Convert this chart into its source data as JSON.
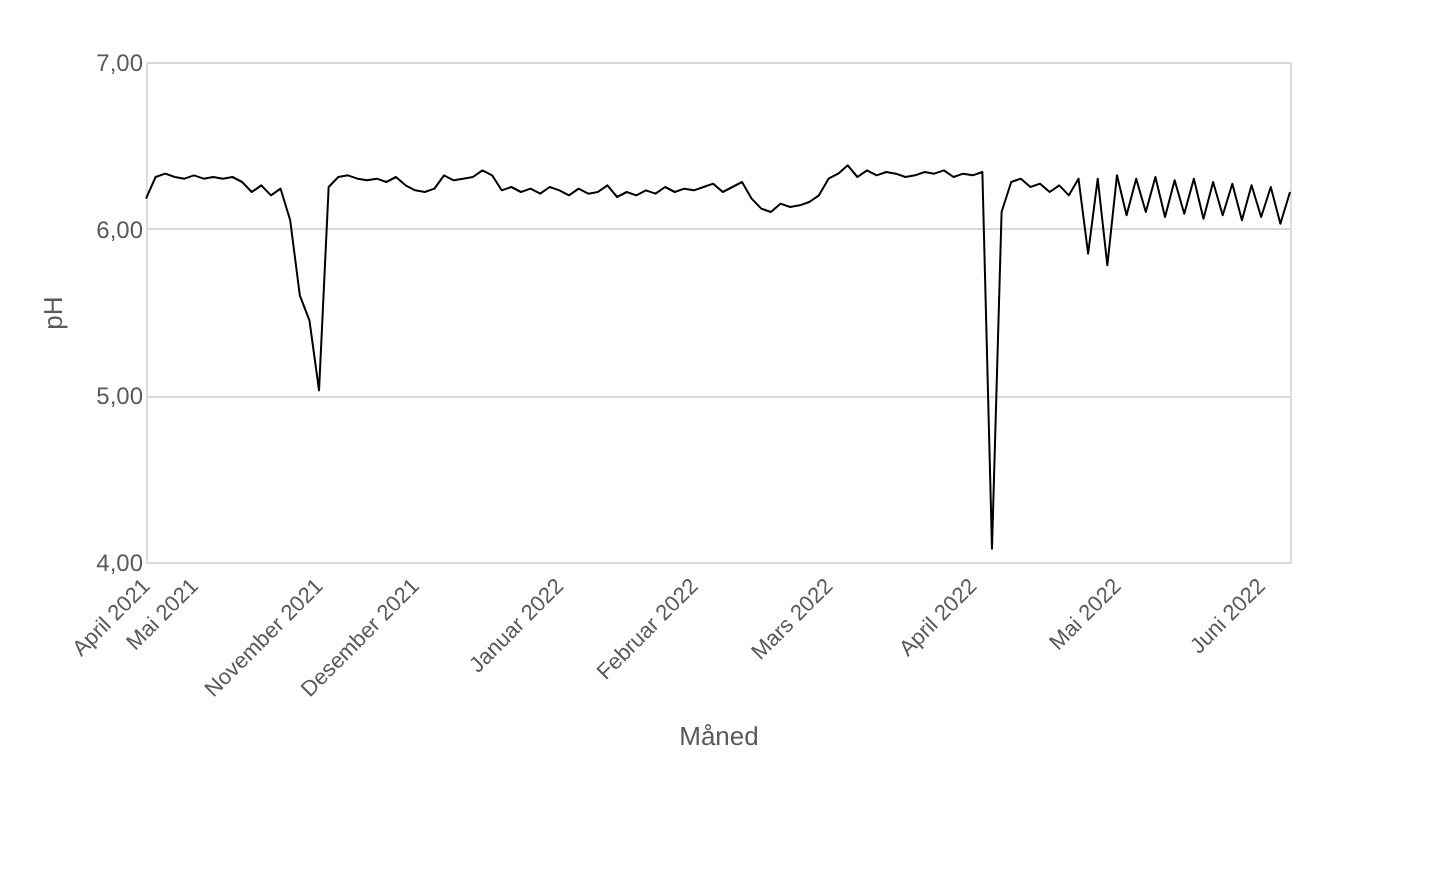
{
  "chart_data": {
    "type": "line",
    "xlabel": "Måned",
    "ylabel": "pH",
    "categories": [
      "April 2021",
      null,
      null,
      null,
      null,
      "Mai 2021",
      null,
      null,
      null,
      null,
      null,
      null,
      null,
      null,
      null,
      null,
      null,
      null,
      "November 2021",
      null,
      null,
      null,
      null,
      null,
      null,
      null,
      null,
      null,
      "Desember 2021",
      null,
      null,
      null,
      null,
      null,
      null,
      null,
      null,
      null,
      null,
      null,
      null,
      null,
      null,
      "Januar 2022",
      null,
      null,
      null,
      null,
      null,
      null,
      null,
      null,
      null,
      null,
      null,
      null,
      null,
      "Februar 2022",
      null,
      null,
      null,
      null,
      null,
      null,
      null,
      null,
      null,
      null,
      null,
      null,
      null,
      "Mars 2022",
      null,
      null,
      null,
      null,
      null,
      null,
      null,
      null,
      null,
      null,
      null,
      null,
      null,
      null,
      "April 2022",
      null,
      null,
      null,
      null,
      null,
      null,
      null,
      null,
      null,
      null,
      null,
      null,
      null,
      null,
      "Mai 2022",
      null,
      null,
      null,
      null,
      null,
      null,
      null,
      null,
      null,
      null,
      null,
      null,
      null,
      null,
      "Juni 2022",
      null,
      null,
      null
    ],
    "series": [
      {
        "color": "#000000",
        "values": [
          6.18,
          6.31,
          6.33,
          6.31,
          6.3,
          6.32,
          6.3,
          6.31,
          6.3,
          6.31,
          6.28,
          6.22,
          6.26,
          6.2,
          6.24,
          6.05,
          5.6,
          5.45,
          5.03,
          6.25,
          6.31,
          6.32,
          6.3,
          6.29,
          6.3,
          6.28,
          6.31,
          6.26,
          6.23,
          6.22,
          6.24,
          6.32,
          6.29,
          6.3,
          6.31,
          6.35,
          6.32,
          6.23,
          6.25,
          6.22,
          6.24,
          6.21,
          6.25,
          6.23,
          6.2,
          6.24,
          6.21,
          6.22,
          6.26,
          6.19,
          6.22,
          6.2,
          6.23,
          6.21,
          6.25,
          6.22,
          6.24,
          6.23,
          6.25,
          6.27,
          6.22,
          6.25,
          6.28,
          6.18,
          6.12,
          6.1,
          6.15,
          6.13,
          6.14,
          6.16,
          6.2,
          6.3,
          6.33,
          6.38,
          6.31,
          6.35,
          6.32,
          6.34,
          6.33,
          6.31,
          6.32,
          6.34,
          6.33,
          6.35,
          6.31,
          6.33,
          6.32,
          6.34,
          4.08,
          6.1,
          6.28,
          6.3,
          6.25,
          6.27,
          6.22,
          6.26,
          6.2,
          6.3,
          5.85,
          6.3,
          5.78,
          6.32,
          6.08,
          6.3,
          6.1,
          6.31,
          6.07,
          6.29,
          6.09,
          6.3,
          6.06,
          6.28,
          6.08,
          6.27,
          6.05,
          6.26,
          6.07,
          6.25,
          6.03,
          6.22
        ]
      }
    ],
    "ylim": [
      4,
      7
    ],
    "yticks": [
      {
        "value": 4,
        "label": "4,00"
      },
      {
        "value": 5,
        "label": "5,00"
      },
      {
        "value": 6,
        "label": "6,00"
      },
      {
        "value": 7,
        "label": "7,00"
      }
    ],
    "grid": "y",
    "legend": false,
    "marker": "none",
    "line_style": "solid"
  }
}
